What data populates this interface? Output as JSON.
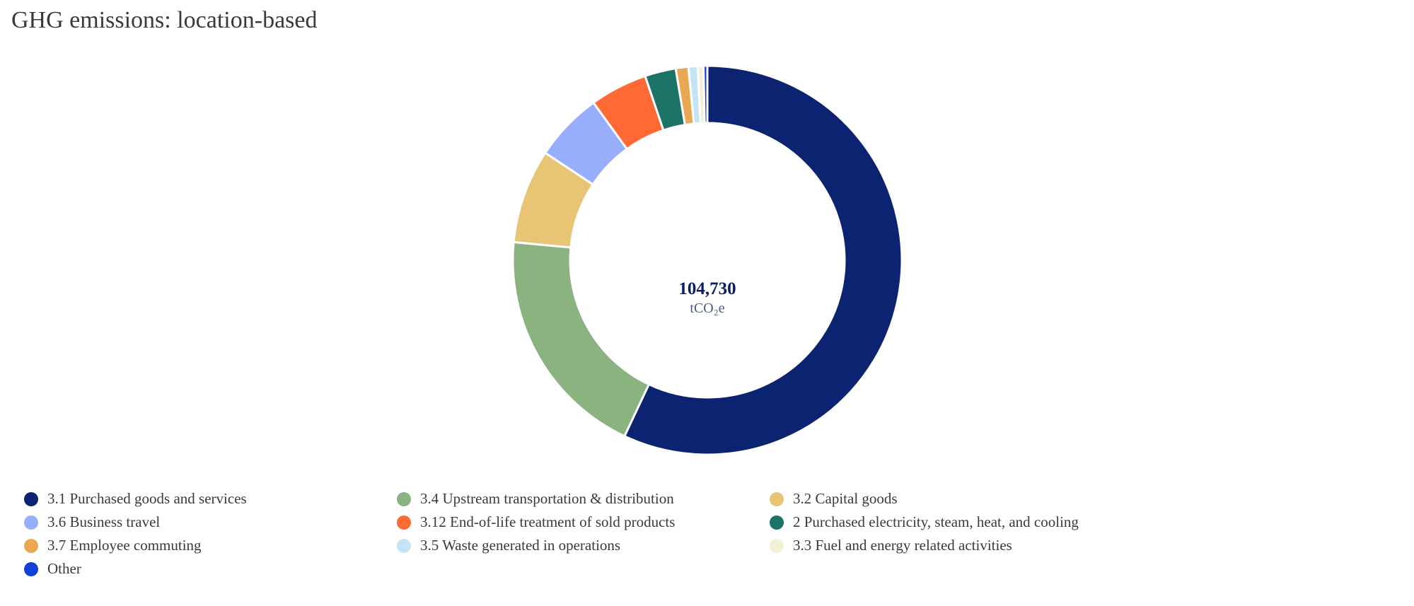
{
  "title": "GHG emissions: location-based",
  "center": {
    "value": "104,730",
    "unit": "tCO₂e"
  },
  "chart_data": {
    "type": "pie",
    "title": "GHG emissions: location-based",
    "total": 104730,
    "unit": "tCO₂e",
    "legend_position": "bottom",
    "series": [
      {
        "name": "3.1 Purchased goods and services",
        "value": 59700,
        "color": "#0b2370"
      },
      {
        "name": "3.4 Upstream transportation & distribution",
        "value": 20400,
        "color": "#8bb380"
      },
      {
        "name": "3.2 Capital goods",
        "value": 8200,
        "color": "#e8c574"
      },
      {
        "name": "3.6 Business travel",
        "value": 6000,
        "color": "#97aefc"
      },
      {
        "name": "3.12 End-of-life treatment of sold products",
        "value": 5000,
        "color": "#fe6934"
      },
      {
        "name": "2 Purchased electricity, steam, heat, and cooling",
        "value": 2700,
        "color": "#1c7368"
      },
      {
        "name": "3.7 Employee commuting",
        "value": 1100,
        "color": "#eaa853"
      },
      {
        "name": "3.5 Waste generated in operations",
        "value": 800,
        "color": "#c5e4f3"
      },
      {
        "name": "3.3 Fuel and energy related activities",
        "value": 500,
        "color": "#f3f0d4"
      },
      {
        "name": "Other",
        "value": 330,
        "color": "#1340d8"
      }
    ]
  }
}
